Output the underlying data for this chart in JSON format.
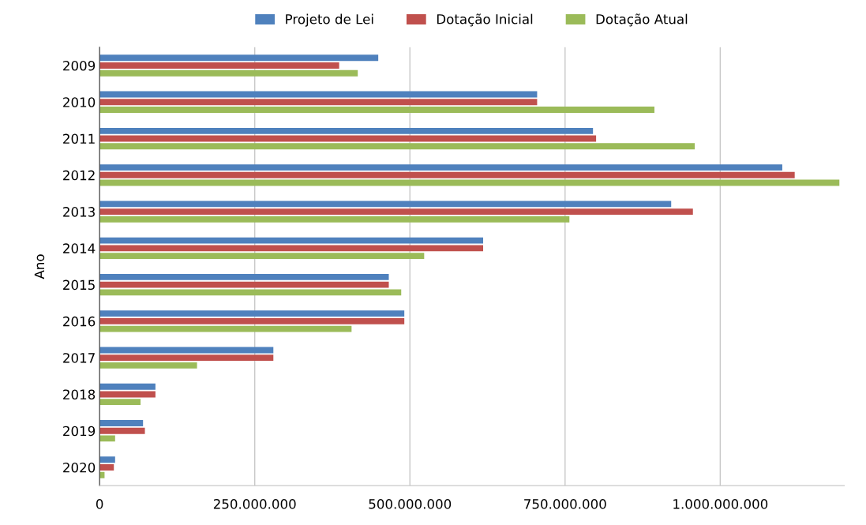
{
  "chart_data": {
    "type": "bar",
    "orientation": "horizontal",
    "ylabel": "Ano",
    "categories": [
      "2009",
      "2010",
      "2011",
      "2012",
      "2013",
      "2014",
      "2015",
      "2016",
      "2017",
      "2018",
      "2019",
      "2020"
    ],
    "series": [
      {
        "name": "Projeto de Lei",
        "color": "#4f81bd",
        "values": [
          449000000,
          705000000,
          795000000,
          1100000000,
          921000000,
          618000000,
          466000000,
          491000000,
          280000000,
          90000000,
          70000000,
          25000000
        ]
      },
      {
        "name": "Dotação Inicial",
        "color": "#c0504d",
        "values": [
          386000000,
          705000000,
          800000000,
          1120000000,
          956000000,
          618000000,
          466000000,
          491000000,
          280000000,
          90000000,
          73000000,
          23000000
        ]
      },
      {
        "name": "Dotação Atual",
        "color": "#9bbb59",
        "values": [
          416000000,
          894000000,
          959000000,
          1192000000,
          757000000,
          523000000,
          486000000,
          406000000,
          157000000,
          66000000,
          25000000,
          8000000
        ]
      }
    ],
    "xlim": [
      0,
      1200000000
    ],
    "xticks": [
      0,
      {
        "value": 250000000,
        "label": "250.000.000"
      },
      {
        "value": 500000000,
        "label": "500.000.000"
      },
      {
        "value": 750000000,
        "label": "750.000.000"
      },
      {
        "value": 1000000000,
        "label": "1.000.000.000"
      }
    ],
    "grid": "x",
    "legend": "top"
  }
}
